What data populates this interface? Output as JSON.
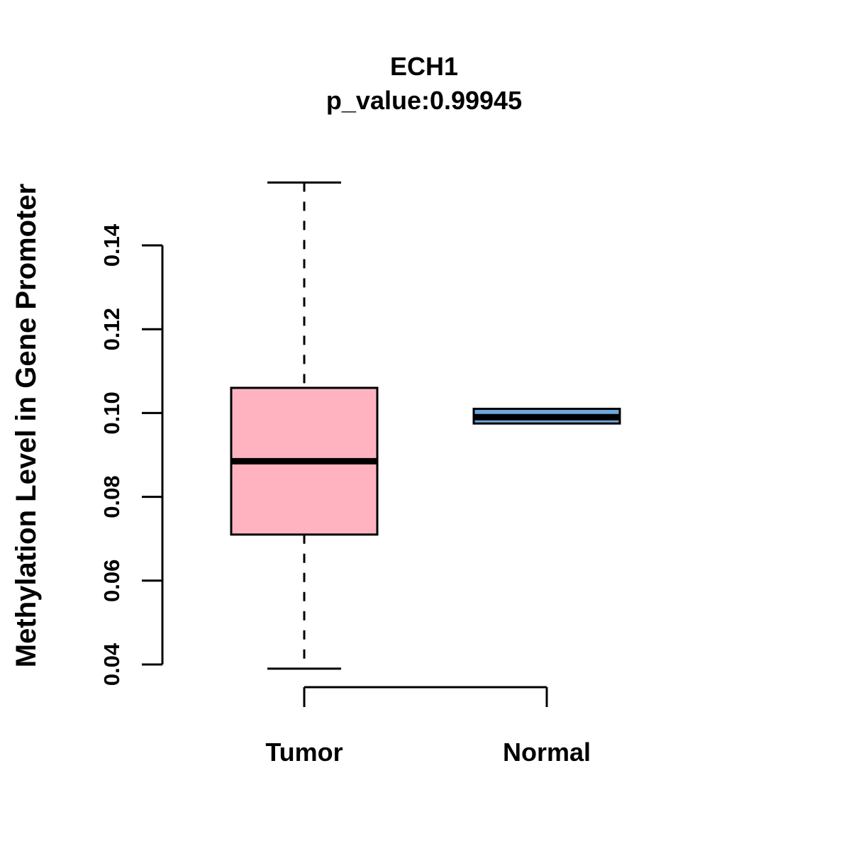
{
  "title": "ECH1",
  "subtitle": "p_value:0.99945",
  "p_value": "0.99945",
  "y_axis": {
    "label": "Methylation Level in Gene Promoter",
    "tick_labels": [
      "0.04",
      "0.06",
      "0.08",
      "0.10",
      "0.12",
      "0.14"
    ],
    "tick_values": [
      0.04,
      0.06,
      0.08,
      0.1,
      0.12,
      0.14
    ]
  },
  "colors": {
    "tumor_fill": "#FFB3C1",
    "normal_fill": "#6FA8DC",
    "box_border": "#000000",
    "axis": "#000000",
    "background": "#FFFFFF"
  },
  "chart_data": {
    "type": "boxplot",
    "title": "ECH1",
    "subtitle": "p_value:0.99945",
    "ylabel": "Methylation Level in Gene Promoter",
    "xlabel": "",
    "categories": [
      "Tumor",
      "Normal"
    ],
    "ylim": [
      0.035,
      0.158
    ],
    "y_ticks": [
      0.04,
      0.06,
      0.08,
      0.1,
      0.12,
      0.14
    ],
    "grid": false,
    "legend": "none",
    "series": [
      {
        "name": "Tumor",
        "fill": "#FFB3C1",
        "whisker_low": 0.039,
        "q1": 0.071,
        "median": 0.0885,
        "q3": 0.106,
        "whisker_high": 0.155
      },
      {
        "name": "Normal",
        "fill": "#6FA8DC",
        "whisker_low": 0.0975,
        "q1": 0.0975,
        "median": 0.099,
        "q3": 0.101,
        "whisker_high": 0.101
      }
    ]
  }
}
